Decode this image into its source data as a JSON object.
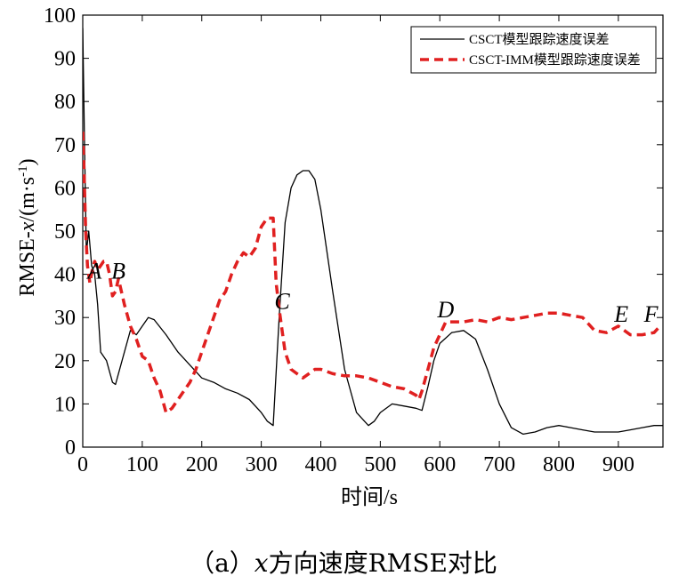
{
  "caption": {
    "prefix": "（a）",
    "var": "x",
    "rest": "方向速度RMSE对比"
  },
  "chart_data": {
    "type": "line",
    "xlabel": "时间/s",
    "ylabel_parts": [
      "RMSE-",
      "x",
      "/(m·s",
      "-1",
      ")"
    ],
    "xlim": [
      0,
      975
    ],
    "ylim": [
      0,
      100
    ],
    "xticks": [
      0,
      100,
      200,
      300,
      400,
      500,
      600,
      700,
      800,
      900
    ],
    "yticks": [
      0,
      10,
      20,
      30,
      40,
      50,
      60,
      70,
      80,
      90,
      100
    ],
    "grid": false,
    "legend_position": "top-right",
    "colors": {
      "series1": "#000000",
      "series2": "#e02020"
    },
    "series": [
      {
        "name": "CSCT模型跟踪速度误差",
        "style": "solid",
        "x": [
          0,
          3,
          6,
          10,
          15,
          20,
          25,
          30,
          40,
          50,
          55,
          60,
          70,
          80,
          90,
          100,
          110,
          120,
          140,
          160,
          180,
          200,
          220,
          240,
          260,
          280,
          300,
          310,
          320,
          330,
          340,
          350,
          360,
          370,
          380,
          390,
          400,
          420,
          440,
          460,
          480,
          490,
          500,
          520,
          540,
          560,
          570,
          580,
          590,
          600,
          620,
          640,
          660,
          680,
          700,
          720,
          740,
          760,
          780,
          800,
          820,
          840,
          860,
          880,
          900,
          920,
          940,
          960,
          975
        ],
        "y": [
          97,
          70,
          45,
          50,
          42,
          40,
          33,
          22,
          20,
          15,
          14.5,
          17,
          22,
          27,
          26,
          28,
          30,
          29.5,
          26,
          22,
          19,
          16,
          15,
          13.5,
          12.5,
          11,
          8,
          6,
          5,
          30,
          52,
          60,
          63,
          64,
          64,
          62,
          55,
          36,
          18,
          8,
          5,
          6,
          8,
          10,
          9.5,
          9,
          8.5,
          14,
          20,
          24,
          26.5,
          27,
          25,
          18,
          10,
          4.5,
          3,
          3.5,
          4.5,
          5,
          4.5,
          4,
          3.5,
          3.5,
          3.5,
          4,
          4.5,
          5,
          5
        ]
      },
      {
        "name": "CSCT-IMM模型跟踪速度误差",
        "style": "dashed",
        "x": [
          0,
          2,
          5,
          8,
          12,
          16,
          20,
          25,
          30,
          35,
          40,
          45,
          50,
          55,
          60,
          70,
          80,
          90,
          100,
          110,
          120,
          130,
          140,
          150,
          160,
          170,
          180,
          190,
          200,
          210,
          220,
          230,
          240,
          250,
          260,
          270,
          280,
          290,
          300,
          310,
          320,
          325,
          330,
          335,
          340,
          350,
          360,
          370,
          380,
          390,
          400,
          420,
          440,
          460,
          480,
          500,
          520,
          540,
          560,
          565,
          570,
          580,
          590,
          600,
          610,
          620,
          640,
          660,
          680,
          700,
          720,
          740,
          760,
          780,
          800,
          820,
          840,
          860,
          880,
          900,
          920,
          930,
          940,
          960,
          970
        ],
        "y": [
          73,
          65,
          50,
          42,
          38,
          41,
          43,
          41,
          42,
          43,
          43,
          40,
          35,
          36,
          39,
          33,
          28,
          25,
          21,
          20,
          16,
          13,
          8,
          9,
          11,
          13,
          15,
          18,
          22,
          26,
          30,
          34,
          36,
          40,
          43,
          45,
          44,
          46,
          51,
          53,
          53,
          38,
          32,
          27,
          22,
          18,
          17,
          16,
          17,
          18,
          18,
          17,
          16.5,
          16.5,
          16,
          15,
          14,
          13.5,
          12,
          11,
          13,
          18,
          23,
          26,
          29,
          29,
          29,
          29.5,
          29,
          30,
          29.5,
          30,
          30.5,
          31,
          31,
          30.5,
          30,
          27,
          26.5,
          28,
          26,
          26,
          26,
          26.5,
          28
        ]
      }
    ],
    "annotations": [
      {
        "text": "A",
        "x": 20,
        "y": 39
      },
      {
        "text": "B",
        "x": 60,
        "y": 39
      },
      {
        "text": "C",
        "x": 335,
        "y": 32
      },
      {
        "text": "D",
        "x": 610,
        "y": 30
      },
      {
        "text": "E",
        "x": 905,
        "y": 29
      },
      {
        "text": "F",
        "x": 955,
        "y": 29
      }
    ]
  }
}
